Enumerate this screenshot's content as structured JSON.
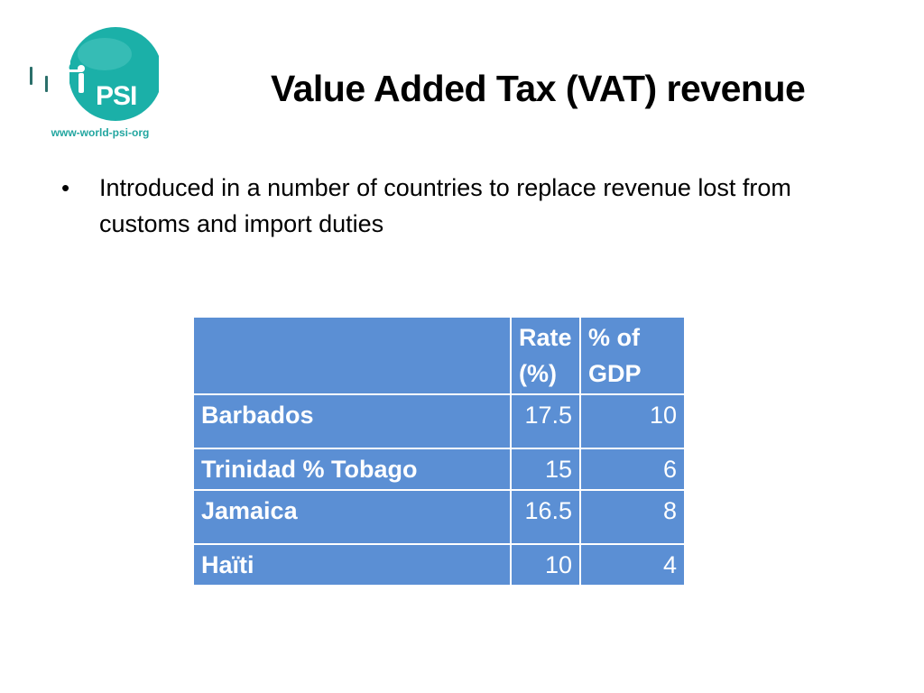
{
  "logo": {
    "brand": "PSI",
    "url": "www-world-psi-org",
    "icon": "psi-globe-logo-icon",
    "colors": {
      "globe": "#1bb0a8",
      "url": "#22a6a0"
    }
  },
  "slide": {
    "title": "Value Added Tax (VAT) revenue",
    "bullets": [
      {
        "text": "Introduced in a number of countries to replace revenue lost from customs and import duties"
      }
    ]
  },
  "table": {
    "headers": [
      "",
      "Rate (%)",
      "% of GDP"
    ],
    "rows": [
      {
        "country": "Barbados",
        "rate": "17.5",
        "gdp": "10"
      },
      {
        "country": "Trinidad % Tobago",
        "rate": "15",
        "gdp": "6"
      },
      {
        "country": "Jamaica",
        "rate": "16.5",
        "gdp": "8"
      },
      {
        "country": "Haïti",
        "rate": "10",
        "gdp": "4"
      }
    ],
    "colors": {
      "cell": "#5b8fd4",
      "border": "#ffffff",
      "text": "#ffffff"
    }
  }
}
